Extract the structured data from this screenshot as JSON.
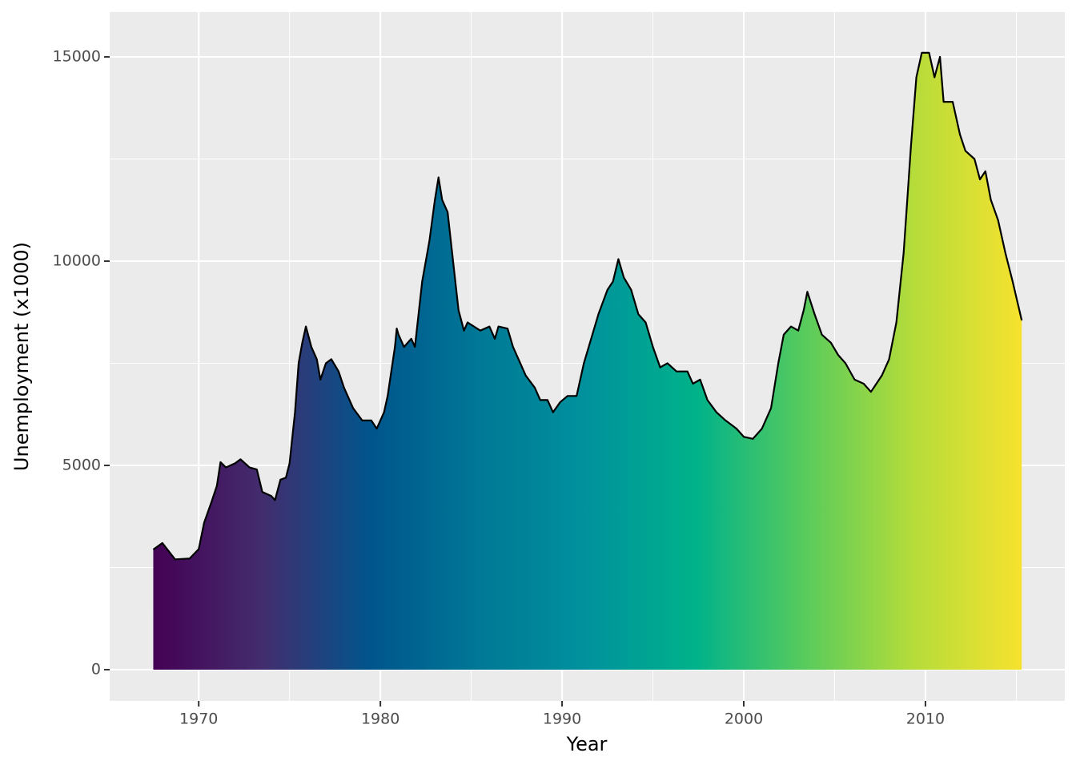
{
  "chart_data": {
    "type": "area",
    "x_label": "Year",
    "y_label": "Unemployment (x1000)",
    "x": [
      1967.5,
      1968.0,
      1968.7,
      1969.5,
      1970.0,
      1970.3,
      1970.7,
      1971.0,
      1971.2,
      1971.5,
      1972.0,
      1972.3,
      1972.8,
      1973.2,
      1973.5,
      1974.0,
      1974.2,
      1974.5,
      1974.8,
      1975.0,
      1975.3,
      1975.5,
      1975.7,
      1975.9,
      1976.2,
      1976.5,
      1976.7,
      1977.0,
      1977.3,
      1977.7,
      1978.0,
      1978.5,
      1979.0,
      1979.5,
      1979.8,
      1980.2,
      1980.4,
      1980.8,
      1980.9,
      1981.0,
      1981.3,
      1981.7,
      1981.9,
      1982.0,
      1982.3,
      1982.7,
      1983.0,
      1983.2,
      1983.4,
      1983.7,
      1984.0,
      1984.3,
      1984.6,
      1984.8,
      1985.5,
      1986.0,
      1986.3,
      1986.5,
      1987.0,
      1987.3,
      1987.7,
      1988.0,
      1988.5,
      1988.8,
      1989.2,
      1989.5,
      1989.9,
      1990.3,
      1990.8,
      1991.2,
      1991.6,
      1992.0,
      1992.5,
      1992.8,
      1993.1,
      1993.4,
      1993.8,
      1994.2,
      1994.6,
      1995.0,
      1995.4,
      1995.8,
      1996.3,
      1996.9,
      1997.2,
      1997.6,
      1998.0,
      1998.5,
      1999.0,
      1999.6,
      2000.0,
      2000.5,
      2001.0,
      2001.5,
      2001.9,
      2002.2,
      2002.6,
      2003.0,
      2003.3,
      2003.5,
      2003.9,
      2004.3,
      2004.8,
      2005.2,
      2005.6,
      2006.1,
      2006.6,
      2007.0,
      2007.3,
      2007.6,
      2008.0,
      2008.4,
      2008.8,
      2009.2,
      2009.5,
      2009.8,
      2010.2,
      2010.5,
      2010.8,
      2011.0,
      2011.5,
      2011.9,
      2012.2,
      2012.7,
      2013.0,
      2013.3,
      2013.6,
      2014.0,
      2014.4,
      2014.8,
      2015.3
    ],
    "values": [
      2940,
      3100,
      2700,
      2720,
      2950,
      3600,
      4100,
      4500,
      5080,
      4950,
      5050,
      5150,
      4950,
      4900,
      4350,
      4250,
      4150,
      4650,
      4700,
      5050,
      6300,
      7500,
      8000,
      8400,
      7900,
      7600,
      7100,
      7500,
      7600,
      7300,
      6900,
      6400,
      6100,
      6100,
      5900,
      6300,
      6700,
      7900,
      8350,
      8200,
      7900,
      8100,
      7900,
      8300,
      9500,
      10500,
      11500,
      12050,
      11500,
      11200,
      10000,
      8800,
      8300,
      8500,
      8300,
      8400,
      8100,
      8400,
      8350,
      7900,
      7500,
      7200,
      6900,
      6600,
      6600,
      6300,
      6550,
      6700,
      6700,
      7500,
      8100,
      8700,
      9300,
      9500,
      10050,
      9600,
      9300,
      8700,
      8500,
      7900,
      7400,
      7500,
      7300,
      7300,
      7000,
      7100,
      6600,
      6300,
      6100,
      5900,
      5700,
      5650,
      5900,
      6400,
      7500,
      8200,
      8400,
      8300,
      8800,
      9250,
      8700,
      8200,
      8000,
      7700,
      7500,
      7100,
      7000,
      6800,
      7000,
      7200,
      7600,
      8500,
      10200,
      12800,
      14500,
      15100,
      15100,
      14500,
      15000,
      13900,
      13900,
      13100,
      12700,
      12500,
      12000,
      12200,
      11500,
      11000,
      10200,
      9500,
      8550
    ],
    "line_color": "#000000",
    "fill_gradient": [
      "#440154",
      "#432d6e",
      "#00558c",
      "#007896",
      "#00929d",
      "#00b28a",
      "#58cb5c",
      "#b5dc3a",
      "#f6e22e"
    ],
    "xlim": [
      1965.1,
      2017.67
    ],
    "ylim": [
      -765,
      16098
    ],
    "xticks": [
      1970,
      1980,
      1990,
      2000,
      2010
    ],
    "yticks": [
      0,
      5000,
      10000,
      15000
    ],
    "x_minor_grid": [
      1975,
      1985,
      1995,
      2005,
      2015
    ],
    "y_minor_grid": [
      2500,
      7500,
      12500
    ],
    "grid": true
  }
}
